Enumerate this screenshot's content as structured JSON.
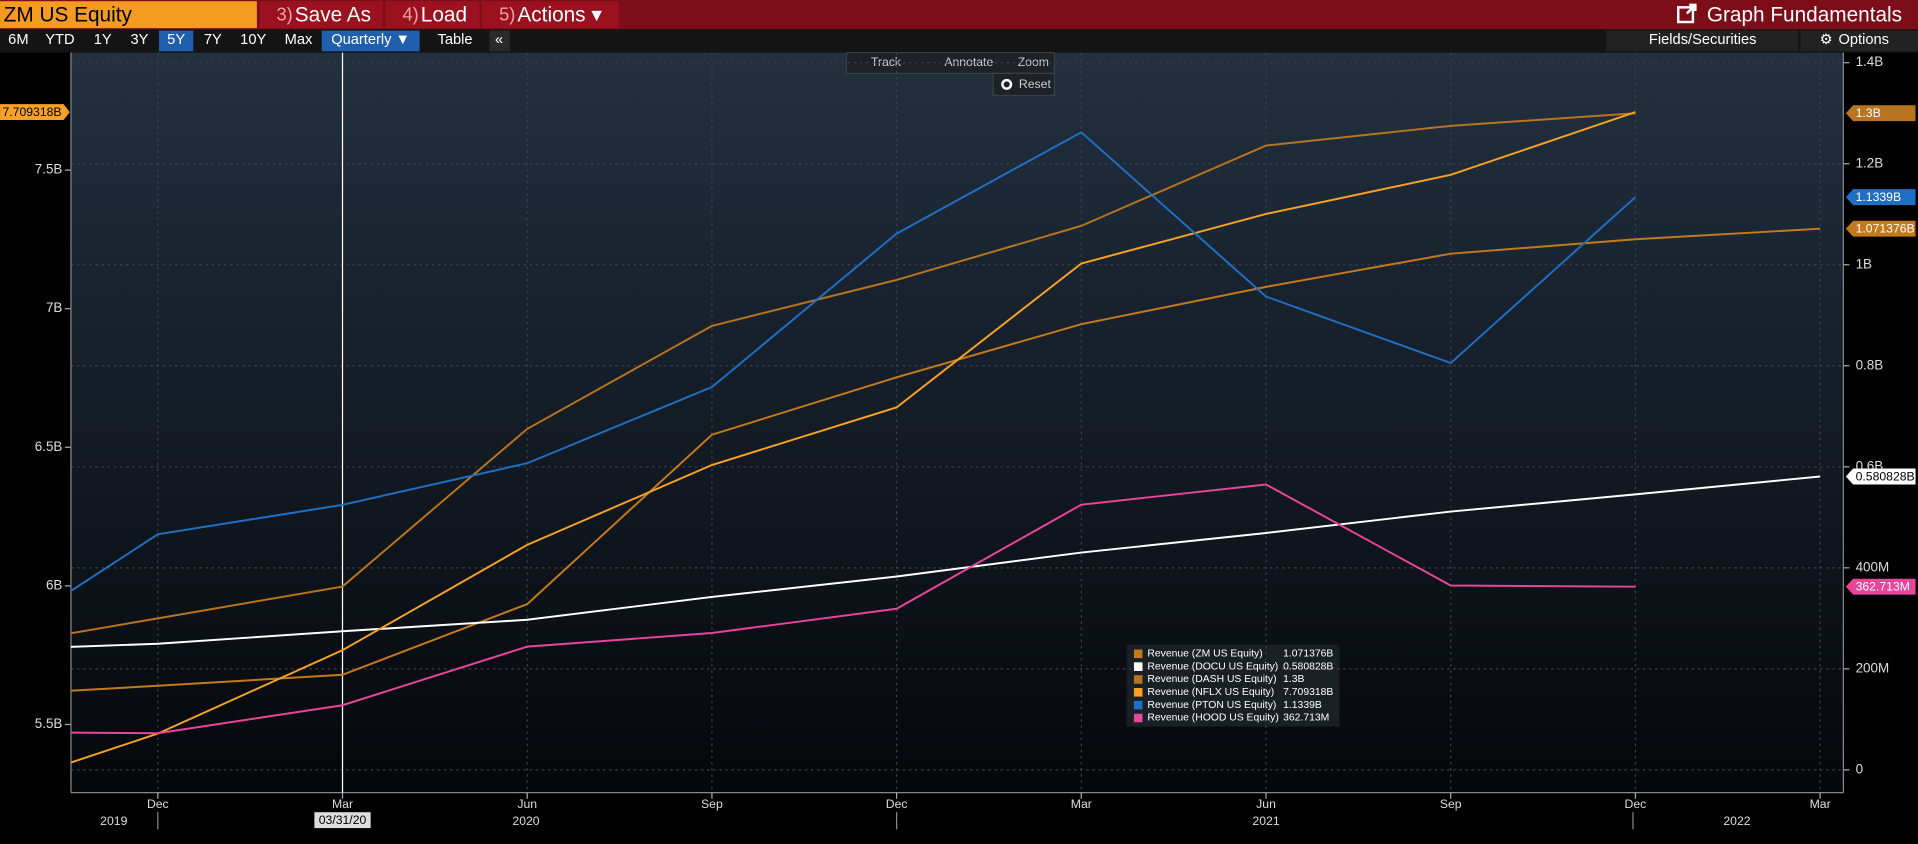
{
  "toolbar": {
    "security": "ZM US Equity",
    "buttons": [
      {
        "num": "3)",
        "label": "Save As"
      },
      {
        "num": "4)",
        "label": "Load"
      },
      {
        "num": "5)",
        "label": "Actions ▾"
      }
    ],
    "title": "Graph Fundamentals",
    "ranges": [
      "6M",
      "YTD",
      "1Y",
      "3Y",
      "5Y",
      "7Y",
      "10Y",
      "Max"
    ],
    "selected_range": "5Y",
    "period": "Quarterly ▼",
    "table": "Table",
    "collapse": "«",
    "fields": "Fields/Securities",
    "options": "Options"
  },
  "chart_tools": {
    "items": [
      "Track",
      "Annotate",
      "Zoom"
    ],
    "reset": "Reset"
  },
  "chart_data": {
    "type": "line",
    "categories": [
      null,
      "Dec",
      "Mar",
      "Jun",
      "Sep",
      "Dec",
      "Mar",
      "Jun",
      "Sep",
      "Dec",
      "Mar"
    ],
    "year_labels": [
      "2019",
      "2020",
      "2021",
      "2022"
    ],
    "cursor_label": "03/31/20",
    "ylim": [
      5.254,
      7.924
    ],
    "yticks": [
      {
        "value": 5.5,
        "label": "5.5B"
      },
      {
        "value": 6,
        "label": "6B"
      },
      {
        "value": 6.5,
        "label": "6.5B"
      },
      {
        "value": 7,
        "label": "7B"
      },
      {
        "value": 7.5,
        "label": "7.5B"
      }
    ],
    "y2lim": [
      -0.045,
      1.42
    ],
    "y2ticks": [
      0,
      {
        "value": 0.2,
        "label": "200M"
      },
      {
        "value": 0.4,
        "label": "400M"
      },
      {
        "value": 0.6,
        "label": "0.6B"
      },
      {
        "value": 0.8,
        "label": "0.8B"
      },
      {
        "value": 1,
        "label": "1B"
      },
      {
        "value": 1.2,
        "label": "1.2B"
      },
      {
        "value": 1.4,
        "label": "1.4B"
      }
    ],
    "grid": true,
    "series": [
      {
        "name": "Revenue (ZM US Equity)",
        "color": "#c47a1c",
        "axis": "y2",
        "values": [
          0.1455,
          0.1666,
          0.1883,
          0.3282,
          0.6635,
          0.7772,
          0.8823,
          0.9562,
          1.0219,
          1.0505,
          1.071376
        ],
        "value_labels": [
          null,
          null,
          null,
          null,
          null,
          null,
          null,
          null,
          null,
          null,
          "1.071376B"
        ]
      },
      {
        "name": "Revenue (DOCU US Equity)",
        "color": "#ffffff",
        "axis": "y2",
        "values": [
          0.2367,
          0.2497,
          0.2745,
          0.2972,
          0.3424,
          0.3829,
          0.4302,
          0.469,
          0.5114,
          0.5454,
          0.580828
        ],
        "value_labels": [
          null,
          null,
          null,
          null,
          null,
          null,
          null,
          null,
          null,
          null,
          "0.580828B"
        ]
      },
      {
        "name": "Revenue (DASH US Equity)",
        "color": "#b8741e",
        "axis": "y2",
        "values": [
          0.237,
          0.3,
          0.363,
          0.675,
          0.879,
          0.97,
          1.077,
          1.236,
          1.275,
          1.3,
          null
        ],
        "value_labels": [
          null,
          null,
          null,
          null,
          null,
          null,
          null,
          null,
          null,
          "1.3B",
          null
        ]
      },
      {
        "name": "Revenue (NFLX US Equity)",
        "color": "#f7a125",
        "axis": "y",
        "values": [
          5.245,
          5.467,
          5.768,
          6.148,
          6.436,
          6.644,
          7.163,
          7.342,
          7.483,
          7.709318,
          null
        ],
        "value_labels": [
          null,
          null,
          null,
          null,
          null,
          null,
          null,
          null,
          null,
          "7.709318B",
          null
        ]
      },
      {
        "name": "Revenue (PTON US Equity)",
        "color": "#1f6fc5",
        "axis": "y2",
        "values": [
          0.228,
          0.4664,
          0.5247,
          0.6071,
          0.7579,
          1.0617,
          1.2623,
          0.937,
          0.8054,
          1.1339,
          null
        ],
        "value_labels": [
          null,
          null,
          null,
          null,
          null,
          null,
          null,
          null,
          null,
          "1.1339B",
          null
        ]
      },
      {
        "name": "Revenue (HOOD US Equity)",
        "color": "#e8459b",
        "axis": "y2",
        "values": [
          0.075,
          0.0726,
          0.128,
          0.244,
          0.271,
          0.319,
          0.525,
          0.565,
          0.365,
          0.362713,
          null
        ],
        "value_labels": [
          null,
          null,
          null,
          null,
          null,
          null,
          null,
          null,
          null,
          "362.713M",
          null
        ]
      }
    ]
  }
}
